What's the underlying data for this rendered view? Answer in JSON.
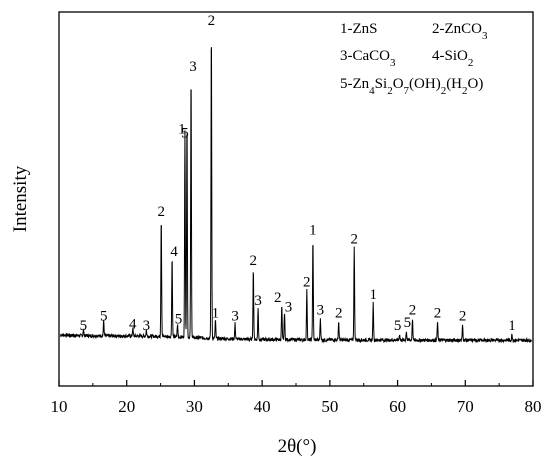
{
  "chart_data": {
    "type": "line",
    "xlabel": "2θ(°)",
    "ylabel": "Intensity",
    "xlim": [
      10,
      80
    ],
    "xticks": [
      10,
      20,
      30,
      40,
      50,
      60,
      70,
      80
    ],
    "ylim": [
      0,
      100
    ],
    "grid": false,
    "legend": {
      "position": "top-right",
      "entries": [
        {
          "id": "1",
          "label": "1-ZnS"
        },
        {
          "id": "2",
          "label": "2-ZnCO3"
        },
        {
          "id": "3",
          "label": "3-CaCO3"
        },
        {
          "id": "4",
          "label": "4-SiO2"
        },
        {
          "id": "5",
          "label": "5-Zn4Si2O7(OH)2(H2O)"
        }
      ]
    },
    "series": [
      {
        "color": "#000000",
        "peaks": [
          {
            "x": 13.6,
            "y": 2.0,
            "label": "5"
          },
          {
            "x": 16.6,
            "y": 5.0,
            "label": "5"
          },
          {
            "x": 20.9,
            "y": 2.5,
            "label": "4"
          },
          {
            "x": 22.9,
            "y": 2.0,
            "label": "3"
          },
          {
            "x": 25.1,
            "y": 39.0,
            "label": "2"
          },
          {
            "x": 26.7,
            "y": 26.0,
            "label": "4"
          },
          {
            "x": 27.5,
            "y": 4.0,
            "label": "5"
          },
          {
            "x": 28.6,
            "y": 67.0,
            "label": "1"
          },
          {
            "x": 28.9,
            "y": 71.0,
            "label": "5"
          },
          {
            "x": 29.5,
            "y": 86.0,
            "label": "3"
          },
          {
            "x": 32.5,
            "y": 101.0,
            "label": "2"
          },
          {
            "x": 33.1,
            "y": 6.0,
            "label": "1"
          },
          {
            "x": 36.0,
            "y": 5.0,
            "label": "3"
          },
          {
            "x": 38.7,
            "y": 23.0,
            "label": "2"
          },
          {
            "x": 39.4,
            "y": 10.0,
            "label": "3"
          },
          {
            "x": 42.9,
            "y": 11.0,
            "label": "2"
          },
          {
            "x": 43.3,
            "y": 9.0,
            "label": "3"
          },
          {
            "x": 46.6,
            "y": 16.0,
            "label": "2"
          },
          {
            "x": 47.5,
            "y": 33.0,
            "label": "1"
          },
          {
            "x": 48.6,
            "y": 7.0,
            "label": "3"
          },
          {
            "x": 51.3,
            "y": 6.0,
            "label": "2"
          },
          {
            "x": 53.6,
            "y": 30.0,
            "label": "2"
          },
          {
            "x": 56.4,
            "y": 12.0,
            "label": "1"
          },
          {
            "x": 60.3,
            "y": 2.0,
            "label": "5"
          },
          {
            "x": 61.3,
            "y": 3.0,
            "label": "5"
          },
          {
            "x": 62.2,
            "y": 7.0,
            "label": "2"
          },
          {
            "x": 65.9,
            "y": 6.0,
            "label": "2"
          },
          {
            "x": 69.6,
            "y": 5.0,
            "label": "2"
          },
          {
            "x": 76.9,
            "y": 2.0,
            "label": "1"
          }
        ]
      }
    ]
  }
}
